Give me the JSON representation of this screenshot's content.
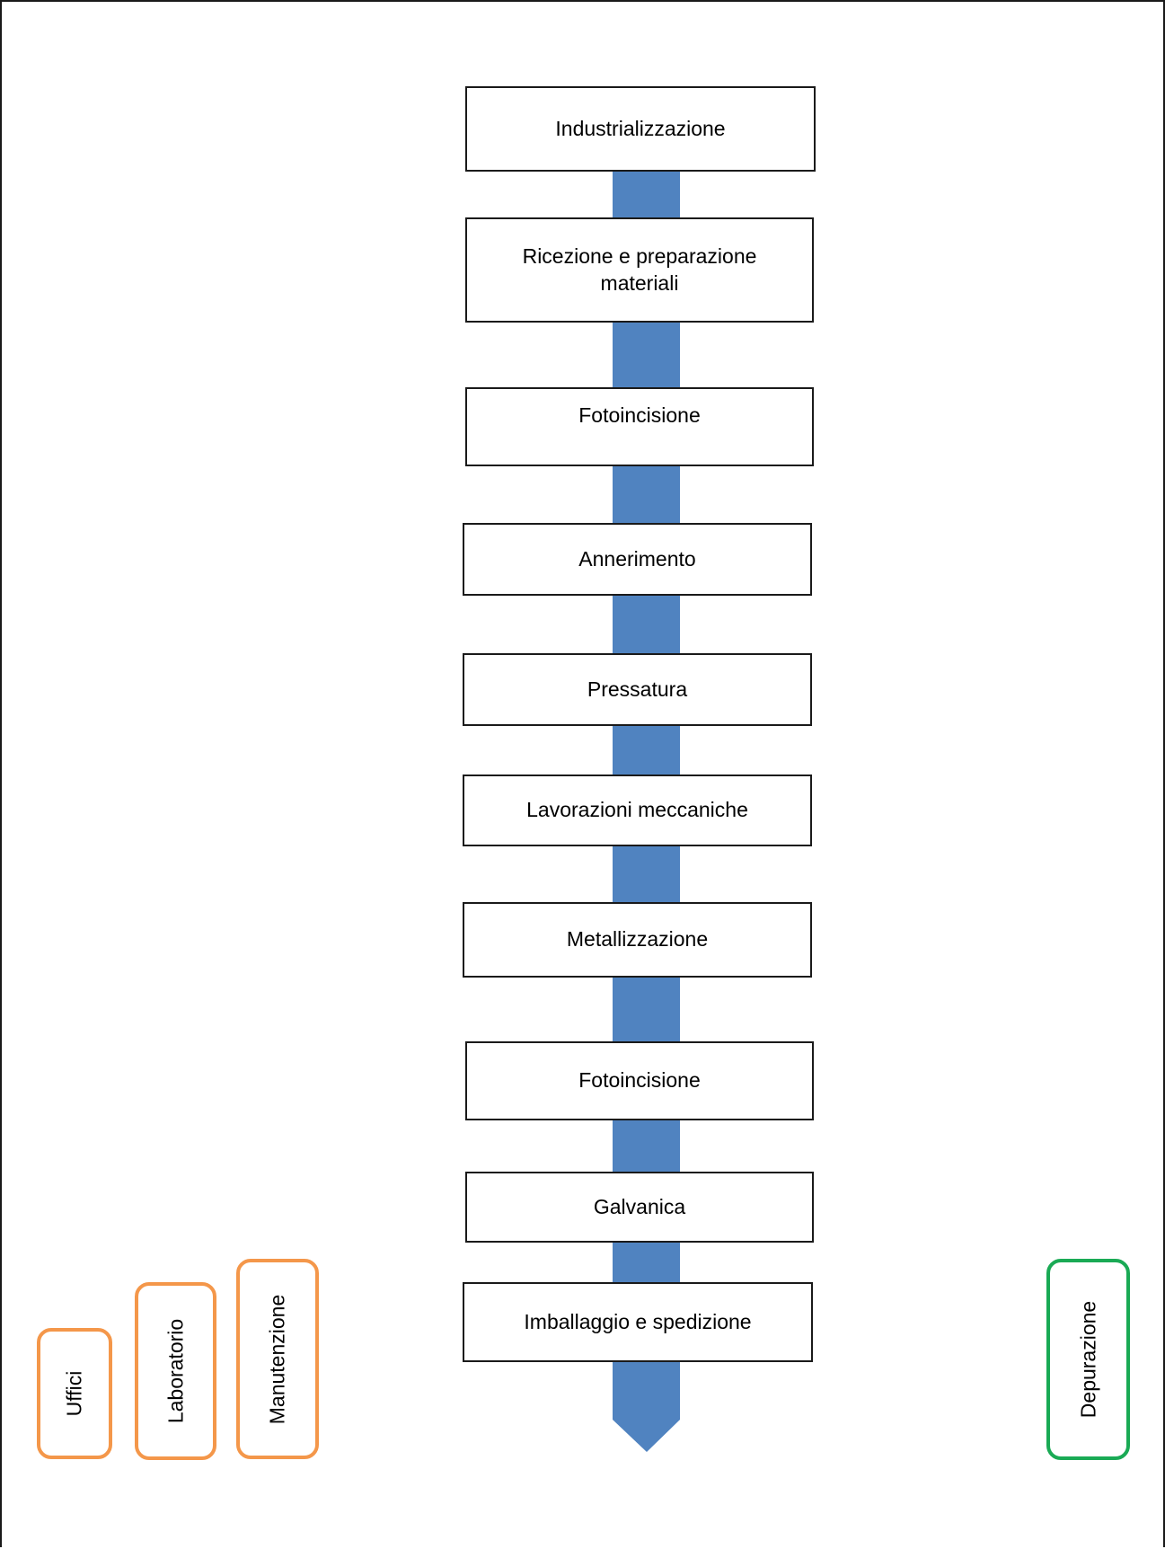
{
  "colors": {
    "arrow": "#5083c0",
    "support_border": "#f4974a",
    "treatment_border": "#1aaa55",
    "box_border": "#1a1a1a"
  },
  "process_steps": [
    {
      "label": "Industrializzazione"
    },
    {
      "label": "Ricezione e preparazione materiali"
    },
    {
      "label": "Fotoincisione"
    },
    {
      "label": "Annerimento"
    },
    {
      "label": "Pressatura"
    },
    {
      "label": "Lavorazioni meccaniche"
    },
    {
      "label": "Metallizzazione"
    },
    {
      "label": "Fotoincisione"
    },
    {
      "label": "Galvanica"
    },
    {
      "label": "Imballaggio e spedizione"
    }
  ],
  "support_units": [
    {
      "label": "Uffici"
    },
    {
      "label": "Laboratorio"
    },
    {
      "label": "Manutenzione"
    }
  ],
  "treatment_unit": {
    "label": "Depurazione"
  }
}
